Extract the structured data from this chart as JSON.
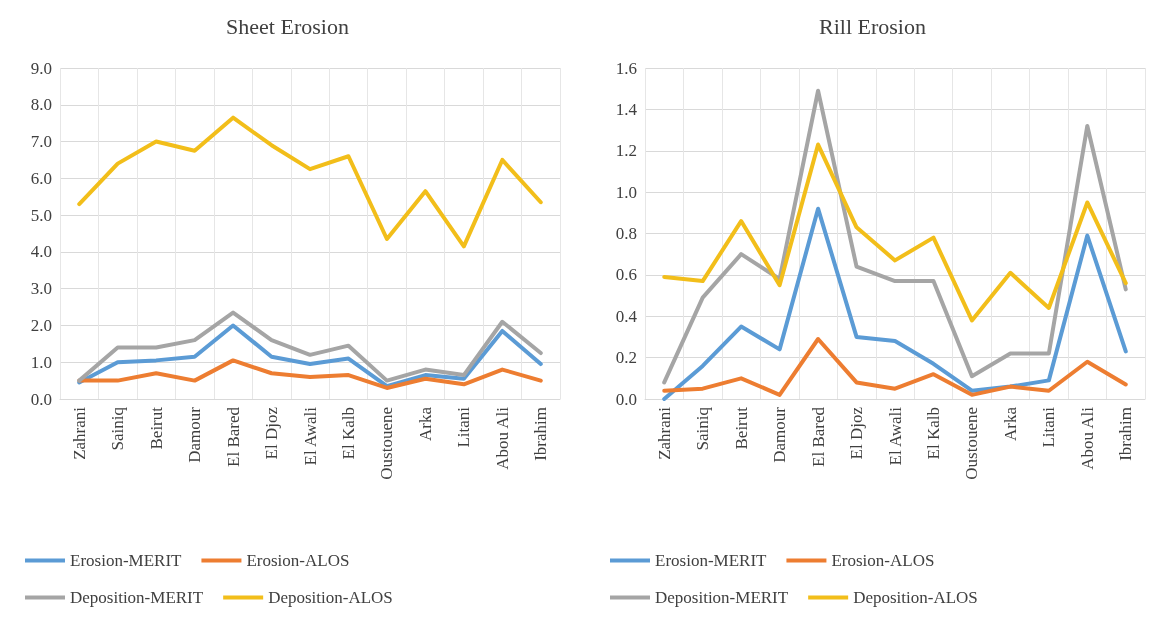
{
  "chart_data": [
    {
      "type": "line",
      "title": "Sheet Erosion",
      "categories": [
        "Zahrani",
        "Sainiq",
        "Beirut",
        "Damour",
        "El Bared",
        "El Djoz",
        "El Awali",
        "El Kalb",
        "Oustouene",
        "Arka",
        "Litani",
        "Abou Ali",
        "Ibrahim"
      ],
      "series": [
        {
          "name": "Erosion-MERIT",
          "color": "#5b9bd5",
          "values": [
            0.45,
            1.0,
            1.05,
            1.15,
            2.0,
            1.15,
            0.95,
            1.1,
            0.35,
            0.65,
            0.55,
            1.85,
            0.95
          ]
        },
        {
          "name": "Erosion-ALOS",
          "color": "#ed7d31",
          "values": [
            0.5,
            0.5,
            0.7,
            0.5,
            1.05,
            0.7,
            0.6,
            0.65,
            0.3,
            0.55,
            0.4,
            0.8,
            0.5
          ]
        },
        {
          "name": "Deposition-MERIT",
          "color": "#a5a5a5",
          "values": [
            0.5,
            1.4,
            1.4,
            1.6,
            2.35,
            1.6,
            1.2,
            1.45,
            0.5,
            0.8,
            0.65,
            2.1,
            1.25
          ]
        },
        {
          "name": "Deposition-ALOS",
          "color": "#f2be1a",
          "values": [
            5.3,
            6.4,
            7.0,
            6.75,
            7.65,
            6.9,
            6.25,
            6.6,
            4.35,
            5.65,
            4.15,
            6.5,
            5.35
          ]
        }
      ],
      "ylim": [
        0,
        9
      ],
      "yticks": [
        {
          "value": 0,
          "label": "0.0"
        },
        {
          "value": 1,
          "label": "1.0"
        },
        {
          "value": 2,
          "label": "2.0"
        },
        {
          "value": 3,
          "label": "3.0"
        },
        {
          "value": 4,
          "label": "4.0"
        },
        {
          "value": 5,
          "label": "5.0"
        },
        {
          "value": 6,
          "label": "6.0"
        },
        {
          "value": 7,
          "label": "7.0"
        },
        {
          "value": 8,
          "label": "8.0"
        },
        {
          "value": 9,
          "label": "9.0"
        }
      ],
      "grid": true,
      "legend": "bottom",
      "marker": "none",
      "line_style": "solid"
    },
    {
      "type": "line",
      "title": "Rill Erosion",
      "categories": [
        "Zahrani",
        "Sainiq",
        "Beirut",
        "Damour",
        "El Bared",
        "El Djoz",
        "El Awali",
        "El Kalb",
        "Oustouene",
        "Arka",
        "Litani",
        "Abou Ali",
        "Ibrahim"
      ],
      "series": [
        {
          "name": "Erosion-MERIT",
          "color": "#5b9bd5",
          "values": [
            0.0,
            0.16,
            0.35,
            0.24,
            0.92,
            0.3,
            0.28,
            0.17,
            0.04,
            0.06,
            0.09,
            0.79,
            0.23
          ]
        },
        {
          "name": "Erosion-ALOS",
          "color": "#ed7d31",
          "values": [
            0.04,
            0.05,
            0.1,
            0.02,
            0.29,
            0.08,
            0.05,
            0.12,
            0.02,
            0.06,
            0.04,
            0.18,
            0.07
          ]
        },
        {
          "name": "Deposition-MERIT",
          "color": "#a5a5a5",
          "values": [
            0.08,
            0.49,
            0.7,
            0.58,
            1.49,
            0.64,
            0.57,
            0.57,
            0.11,
            0.22,
            0.22,
            1.32,
            0.53
          ]
        },
        {
          "name": "Deposition-ALOS",
          "color": "#f2be1a",
          "values": [
            0.59,
            0.57,
            0.86,
            0.55,
            1.23,
            0.83,
            0.67,
            0.78,
            0.38,
            0.61,
            0.44,
            0.95,
            0.56
          ]
        }
      ],
      "ylim": [
        0,
        1.6
      ],
      "yticks": [
        {
          "value": 0,
          "label": "0.0"
        },
        {
          "value": 0.2,
          "label": "0.2"
        },
        {
          "value": 0.4,
          "label": "0.4"
        },
        {
          "value": 0.6,
          "label": "0.6"
        },
        {
          "value": 0.8,
          "label": "0.8"
        },
        {
          "value": 1.0,
          "label": "1.0"
        },
        {
          "value": 1.2,
          "label": "1.2"
        },
        {
          "value": 1.4,
          "label": "1.4"
        },
        {
          "value": 1.6,
          "label": "1.6"
        }
      ],
      "grid": true,
      "legend": "bottom",
      "marker": "none",
      "line_style": "solid"
    }
  ]
}
